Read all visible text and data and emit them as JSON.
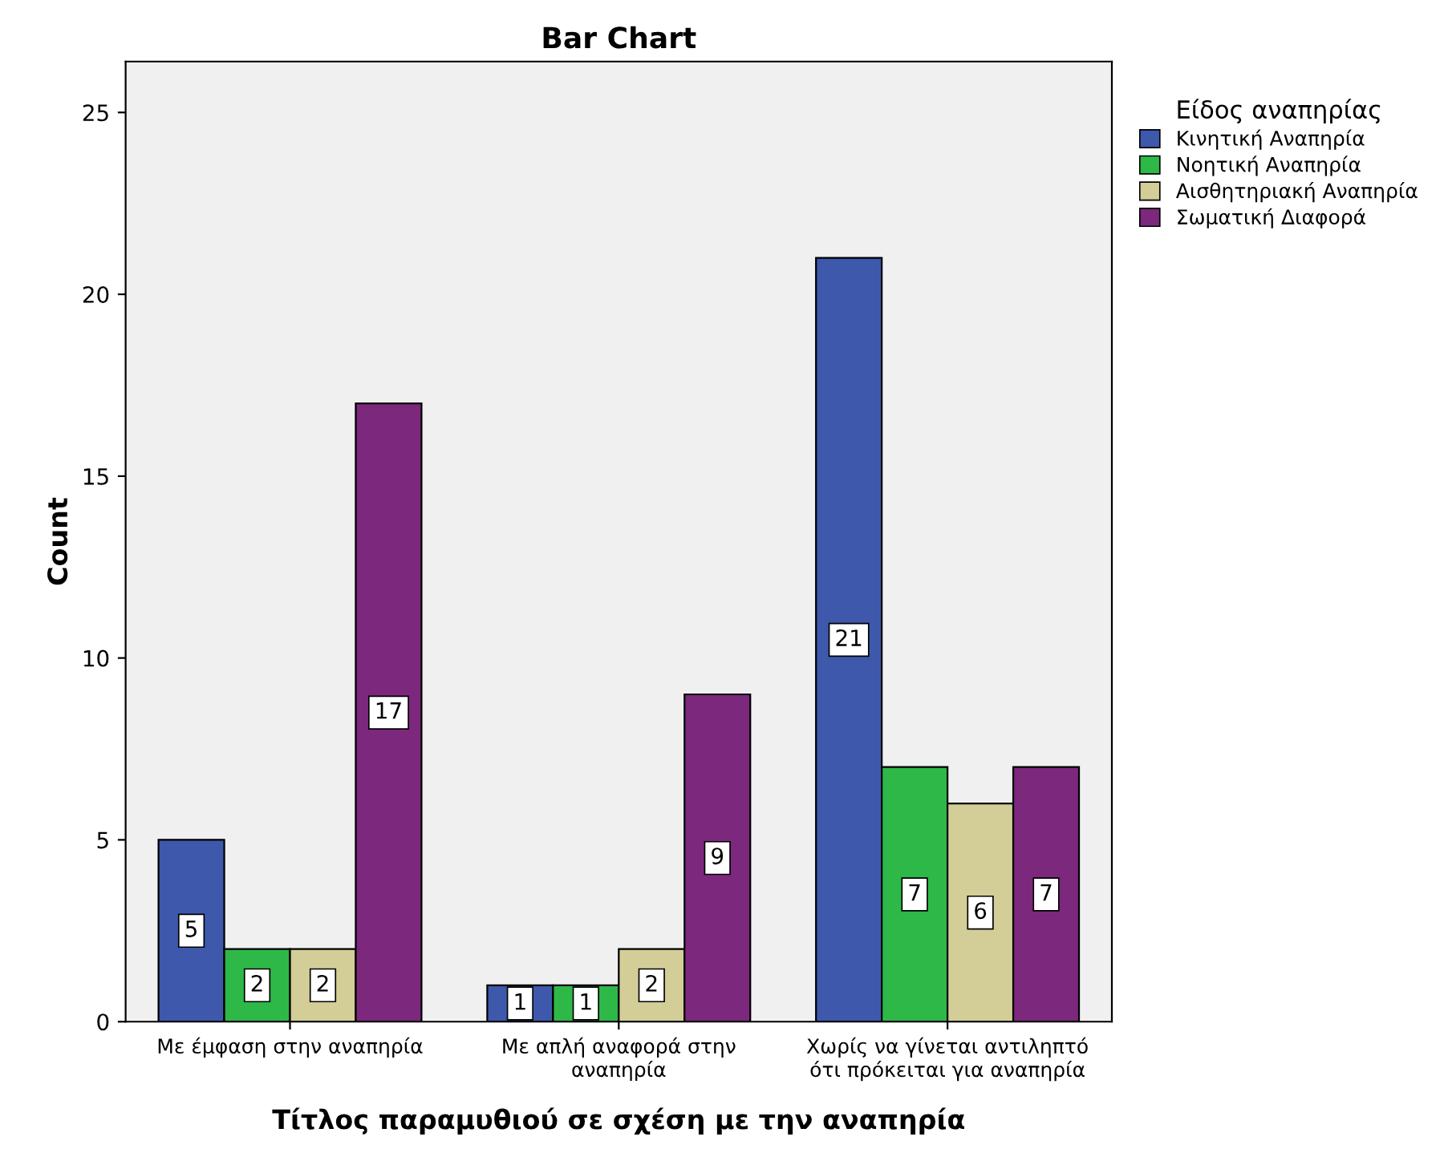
{
  "chart_data": {
    "type": "bar",
    "title": "Bar Chart",
    "xlabel": "Τίτλος παραμυθιού σε σχέση με την αναπηρία",
    "ylabel": "Count",
    "legend_title": "Είδος αναπηρίας",
    "categories": [
      "Με έμφαση στην αναπηρία",
      "Με απλή αναφορά στην\nαναπηρία",
      "Χωρίς να γίνεται αντιληπτό\nότι πρόκειται για αναπηρία"
    ],
    "series": [
      {
        "name": "Κινητική Αναπηρία",
        "color": "#3e58ac",
        "values": [
          5,
          1,
          21
        ]
      },
      {
        "name": "Νοητική Αναπηρία",
        "color": "#2eb848",
        "values": [
          2,
          1,
          7
        ]
      },
      {
        "name": "Αισθητηριακή Αναπηρία",
        "color": "#d3ce97",
        "values": [
          2,
          2,
          6
        ]
      },
      {
        "name": "Σωματική Διαφορά",
        "color": "#7c287d",
        "values": [
          17,
          9,
          7
        ]
      }
    ],
    "ylim": [
      0,
      26.4
    ],
    "yticks": [
      0,
      5,
      10,
      15,
      20,
      25
    ],
    "grid": false,
    "legend": "right",
    "data_labels": true
  }
}
